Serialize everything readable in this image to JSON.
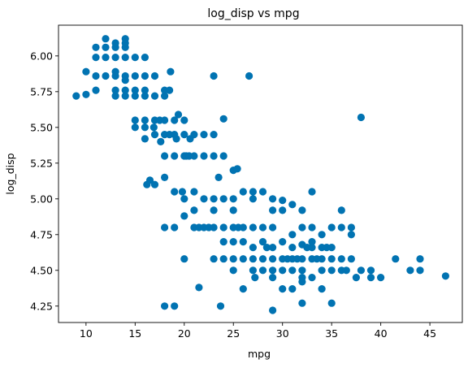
{
  "chart_data": {
    "type": "scatter",
    "title": "log_disp vs mpg",
    "xlabel": "mpg",
    "ylabel": "log_disp",
    "xlim": [
      7.2,
      48.3
    ],
    "ylim": [
      4.135,
      6.215
    ],
    "xticks": [
      10,
      15,
      20,
      25,
      30,
      35,
      40,
      45
    ],
    "yticks": [
      4.25,
      4.5,
      4.75,
      5.0,
      5.25,
      5.5,
      5.75,
      6.0
    ],
    "ytick_labels": [
      "4.25",
      "4.50",
      "4.75",
      "5.00",
      "5.25",
      "5.50",
      "5.75",
      "6.00"
    ],
    "grid": false,
    "marker_color": "#0173b2",
    "series": [
      {
        "points": [
          [
            9,
            5.72
          ],
          [
            10,
            5.73
          ],
          [
            10,
            5.89
          ],
          [
            11,
            5.76
          ],
          [
            11,
            5.86
          ],
          [
            11,
            5.99
          ],
          [
            11,
            6.06
          ],
          [
            12,
            5.86
          ],
          [
            12,
            5.99
          ],
          [
            12,
            6.06
          ],
          [
            12,
            6.12
          ],
          [
            13,
            5.72
          ],
          [
            13,
            5.76
          ],
          [
            13,
            5.86
          ],
          [
            13,
            5.89
          ],
          [
            13,
            5.99
          ],
          [
            13,
            6.06
          ],
          [
            13,
            6.09
          ],
          [
            14,
            5.72
          ],
          [
            14,
            5.76
          ],
          [
            14,
            5.83
          ],
          [
            14,
            5.86
          ],
          [
            14,
            5.99
          ],
          [
            14,
            6.06
          ],
          [
            14,
            6.09
          ],
          [
            14,
            6.12
          ],
          [
            15,
            5.5
          ],
          [
            15,
            5.55
          ],
          [
            15,
            5.72
          ],
          [
            15,
            5.76
          ],
          [
            15,
            5.86
          ],
          [
            15,
            5.99
          ],
          [
            16,
            5.42
          ],
          [
            16,
            5.5
          ],
          [
            16,
            5.55
          ],
          [
            16,
            5.72
          ],
          [
            16,
            5.76
          ],
          [
            16,
            5.86
          ],
          [
            16,
            5.99
          ],
          [
            16.2,
            5.1
          ],
          [
            16.5,
            5.13
          ],
          [
            16.9,
            5.5
          ],
          [
            17,
            5.1
          ],
          [
            17,
            5.45
          ],
          [
            17,
            5.55
          ],
          [
            17,
            5.72
          ],
          [
            17,
            5.86
          ],
          [
            17.5,
            5.55
          ],
          [
            17.6,
            5.4
          ],
          [
            18,
            4.25
          ],
          [
            18,
            4.8
          ],
          [
            18,
            5.15
          ],
          [
            18,
            5.3
          ],
          [
            18,
            5.45
          ],
          [
            18,
            5.55
          ],
          [
            18,
            5.72
          ],
          [
            18,
            5.76
          ],
          [
            18.5,
            5.45
          ],
          [
            18.5,
            5.76
          ],
          [
            18.6,
            5.89
          ],
          [
            19,
            4.25
          ],
          [
            19,
            4.8
          ],
          [
            19,
            5.05
          ],
          [
            19,
            5.3
          ],
          [
            19,
            5.45
          ],
          [
            19,
            5.55
          ],
          [
            19.2,
            5.42
          ],
          [
            19.4,
            5.59
          ],
          [
            19.8,
            5.05
          ],
          [
            20,
            4.58
          ],
          [
            20,
            4.88
          ],
          [
            20,
            5.0
          ],
          [
            20,
            5.3
          ],
          [
            20,
            5.45
          ],
          [
            20,
            5.55
          ],
          [
            20.2,
            5.3
          ],
          [
            20.5,
            5.3
          ],
          [
            20.6,
            5.42
          ],
          [
            21,
            4.8
          ],
          [
            21,
            4.92
          ],
          [
            21,
            5.05
          ],
          [
            21,
            5.3
          ],
          [
            21,
            5.45
          ],
          [
            21.5,
            4.38
          ],
          [
            21.5,
            4.8
          ],
          [
            22,
            4.8
          ],
          [
            22,
            5.0
          ],
          [
            22,
            5.3
          ],
          [
            22,
            5.45
          ],
          [
            22.5,
            4.8
          ],
          [
            23,
            4.58
          ],
          [
            23,
            4.8
          ],
          [
            23,
            4.92
          ],
          [
            23,
            5.0
          ],
          [
            23,
            5.3
          ],
          [
            23,
            5.45
          ],
          [
            23,
            5.86
          ],
          [
            23.5,
            5.15
          ],
          [
            23.7,
            4.25
          ],
          [
            24,
            4.58
          ],
          [
            24,
            4.7
          ],
          [
            24,
            4.8
          ],
          [
            24,
            5.0
          ],
          [
            24,
            5.3
          ],
          [
            24,
            5.56
          ],
          [
            25,
            4.5
          ],
          [
            25,
            4.58
          ],
          [
            25,
            4.7
          ],
          [
            25,
            4.8
          ],
          [
            25,
            4.92
          ],
          [
            25,
            5.0
          ],
          [
            25,
            5.2
          ],
          [
            25.4,
            5.21
          ],
          [
            25.5,
            4.8
          ],
          [
            26,
            4.37
          ],
          [
            26,
            4.58
          ],
          [
            26,
            4.7
          ],
          [
            26,
            4.8
          ],
          [
            26,
            5.05
          ],
          [
            26.6,
            5.86
          ],
          [
            27,
            4.5
          ],
          [
            27,
            4.58
          ],
          [
            27,
            4.66
          ],
          [
            27,
            4.8
          ],
          [
            27,
            5.0
          ],
          [
            27,
            5.05
          ],
          [
            27.2,
            4.45
          ],
          [
            28,
            4.5
          ],
          [
            28,
            4.58
          ],
          [
            28,
            4.7
          ],
          [
            28,
            4.8
          ],
          [
            28,
            5.05
          ],
          [
            28.4,
            4.66
          ],
          [
            29,
            4.22
          ],
          [
            29,
            4.45
          ],
          [
            29,
            4.5
          ],
          [
            29,
            4.58
          ],
          [
            29,
            4.66
          ],
          [
            29,
            4.8
          ],
          [
            29,
            4.92
          ],
          [
            29,
            5.0
          ],
          [
            30,
            4.37
          ],
          [
            30,
            4.5
          ],
          [
            30,
            4.58
          ],
          [
            30,
            4.7
          ],
          [
            30,
            4.92
          ],
          [
            30,
            4.99
          ],
          [
            30.5,
            4.58
          ],
          [
            31,
            4.37
          ],
          [
            31,
            4.5
          ],
          [
            31,
            4.58
          ],
          [
            31,
            4.66
          ],
          [
            31,
            4.75
          ],
          [
            31,
            4.96
          ],
          [
            31.5,
            4.58
          ],
          [
            32,
            4.27
          ],
          [
            32,
            4.42
          ],
          [
            32,
            4.45
          ],
          [
            32,
            4.5
          ],
          [
            32,
            4.58
          ],
          [
            32,
            4.68
          ],
          [
            32,
            4.8
          ],
          [
            32,
            4.92
          ],
          [
            32.5,
            4.66
          ],
          [
            33,
            4.45
          ],
          [
            33,
            4.58
          ],
          [
            33,
            4.66
          ],
          [
            33,
            4.7
          ],
          [
            33,
            4.8
          ],
          [
            33,
            5.05
          ],
          [
            33.5,
            4.58
          ],
          [
            34,
            4.37
          ],
          [
            34,
            4.5
          ],
          [
            34,
            4.58
          ],
          [
            34,
            4.66
          ],
          [
            34,
            4.75
          ],
          [
            34.5,
            4.66
          ],
          [
            35,
            4.27
          ],
          [
            35,
            4.5
          ],
          [
            35,
            4.58
          ],
          [
            35,
            4.66
          ],
          [
            35,
            4.8
          ],
          [
            36,
            4.5
          ],
          [
            36,
            4.58
          ],
          [
            36,
            4.8
          ],
          [
            36,
            4.92
          ],
          [
            36.5,
            4.5
          ],
          [
            37,
            4.58
          ],
          [
            37,
            4.75
          ],
          [
            37,
            4.8
          ],
          [
            37.5,
            4.45
          ],
          [
            38,
            4.5
          ],
          [
            38,
            5.57
          ],
          [
            39,
            4.45
          ],
          [
            39,
            4.5
          ],
          [
            40,
            4.45
          ],
          [
            41.5,
            4.58
          ],
          [
            43,
            4.5
          ],
          [
            44,
            4.5
          ],
          [
            44,
            4.58
          ],
          [
            46.6,
            4.46
          ]
        ]
      }
    ]
  }
}
